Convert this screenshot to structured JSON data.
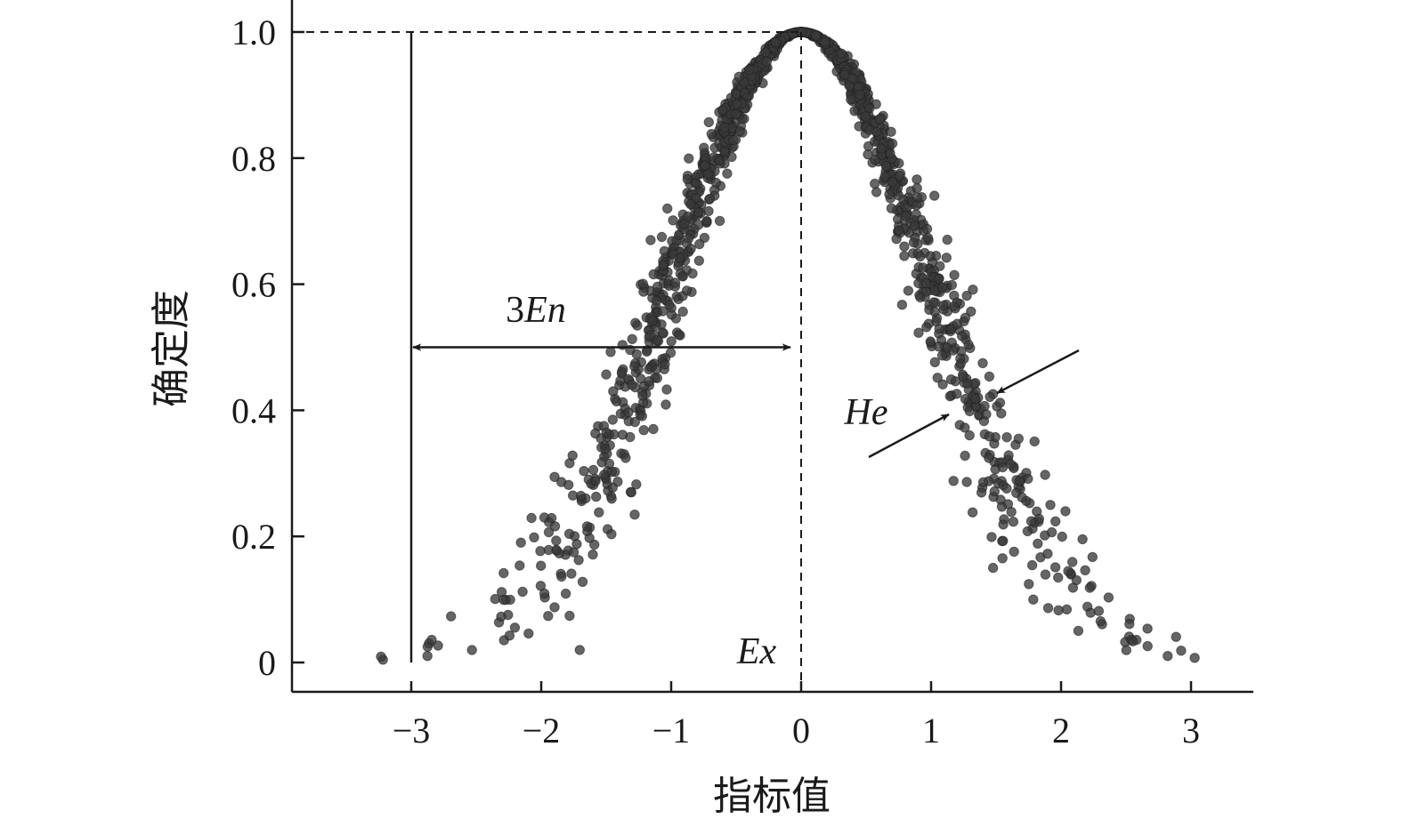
{
  "chart_data": {
    "type": "scatter",
    "title": "",
    "xlabel": "指标值",
    "ylabel": "确定度",
    "xlim": [
      -3.9,
      3.5
    ],
    "ylim": [
      -0.05,
      1.0
    ],
    "xticks": [
      -3,
      -2,
      -1,
      0,
      1,
      2,
      3
    ],
    "xtick_labels": [
      "−3",
      "−2",
      "−1",
      "0",
      "1",
      "2",
      "3"
    ],
    "yticks": [
      0,
      0.2,
      0.4,
      0.6,
      0.8,
      1.0
    ],
    "ytick_labels": [
      "0",
      "0.2",
      "0.4",
      "0.6",
      "0.8",
      "1.0"
    ],
    "grid": false,
    "series": [
      {
        "model": "normal cloud drops",
        "Ex": 0,
        "En": 1,
        "He": 0.1,
        "count": 1500,
        "color": "#3a3a3a"
      }
    ],
    "annotations": {
      "three_en_prefix": "3",
      "three_en_label": "En",
      "he_label": "He",
      "ex_label": "Ex",
      "three_en_arrow_y": 0.5,
      "three_en_from_x": -3,
      "three_en_to_x": 0,
      "vertical_line_x": -3,
      "peak_value": 1.0
    }
  }
}
